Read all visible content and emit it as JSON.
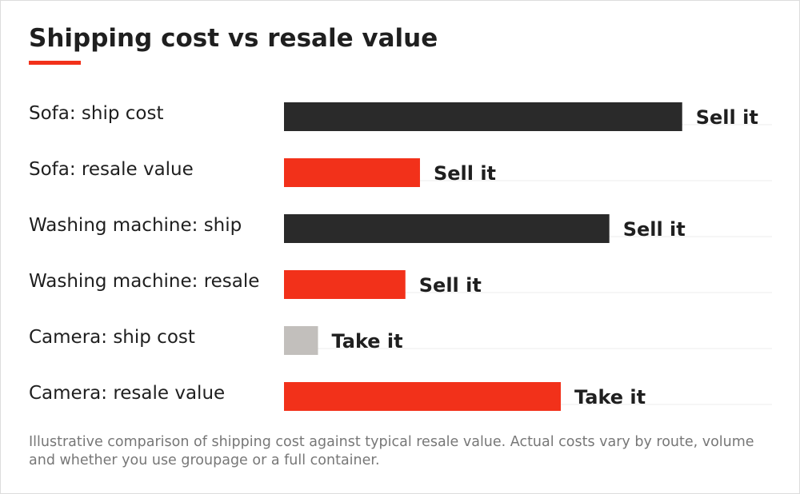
{
  "page": {
    "title": "Shipping cost vs resale value",
    "caption": "Illustrative comparison of shipping cost against typical resale value. Actual costs vary by route, volume and whether you use groupage or a full container.",
    "accent_color": "#f2311a"
  },
  "chart_data": {
    "type": "bar",
    "orientation": "horizontal",
    "title": "Shipping cost vs resale value",
    "xlabel": "",
    "ylabel": "",
    "grid": false,
    "legend": "none",
    "xlim": [
      0,
      100
    ],
    "categories": [
      "Sofa: ship cost",
      "Sofa: resale value",
      "Washing machine: ship",
      "Washing machine: resale",
      "Camera: ship cost",
      "Camera: resale value"
    ],
    "values": [
      82,
      28,
      67,
      25,
      7,
      57
    ],
    "data_labels": [
      "Sell it",
      "Sell it",
      "Sell it",
      "Sell it",
      "Take it",
      "Take it"
    ],
    "bar_colors": [
      "#2a2a2a",
      "#f2311a",
      "#2a2a2a",
      "#f2311a",
      "#c2bfbc",
      "#f2311a"
    ]
  }
}
